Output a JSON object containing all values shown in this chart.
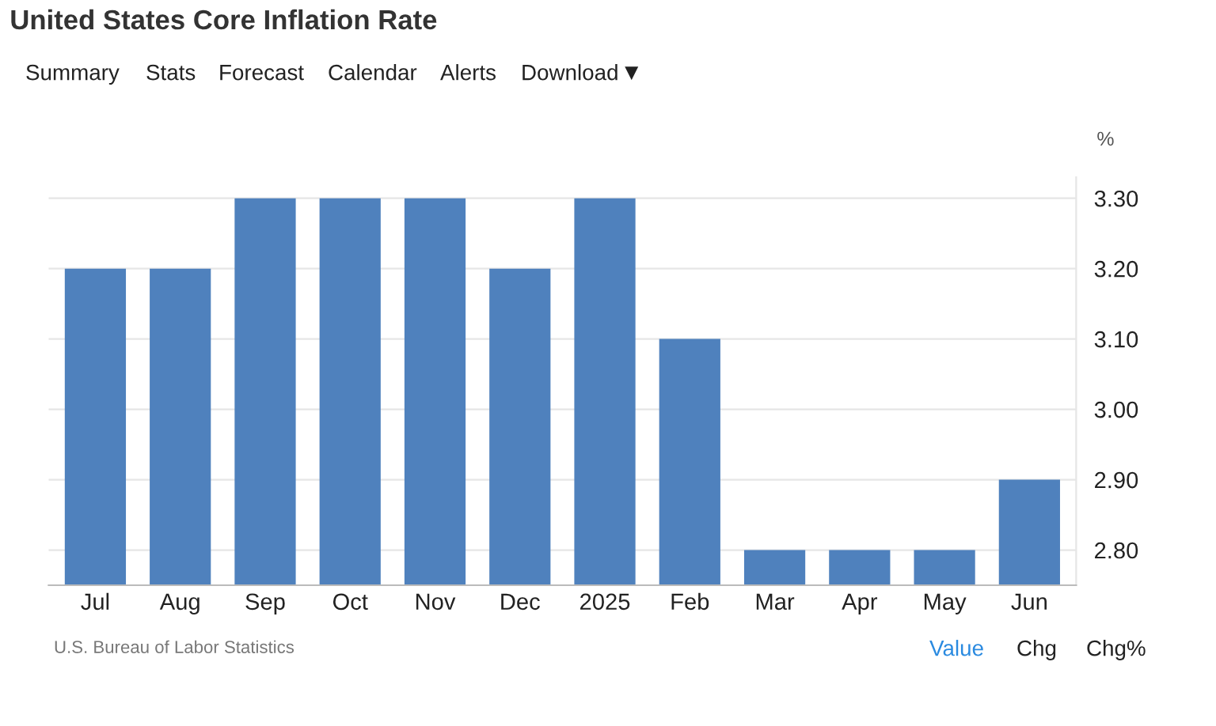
{
  "chart_data": {
    "type": "bar",
    "title": "United States Core Inflation Rate",
    "ylabel": "%",
    "categories": [
      "Jul",
      "Aug",
      "Sep",
      "Oct",
      "Nov",
      "Dec",
      "2025",
      "Feb",
      "Mar",
      "Apr",
      "May",
      "Jun"
    ],
    "values": [
      3.2,
      3.2,
      3.3,
      3.3,
      3.3,
      3.2,
      3.3,
      3.1,
      2.8,
      2.8,
      2.8,
      2.9
    ],
    "color": "#4f81bd",
    "ylim": [
      2.75,
      3.33
    ],
    "yticks": [
      {
        "value": 2.8,
        "label": "2.80"
      },
      {
        "value": 2.9,
        "label": "2.90"
      },
      {
        "value": 3.0,
        "label": "3.00"
      },
      {
        "value": 3.1,
        "label": "3.10"
      },
      {
        "value": 3.2,
        "label": "3.20"
      },
      {
        "value": 3.3,
        "label": "3.30"
      }
    ],
    "grid": "y",
    "annotations": [
      "Summary",
      "Stats",
      "Forecast",
      "Calendar",
      "Alerts",
      "Download",
      "U.S. Bureau of Labor Statistics",
      "Value",
      "Chg",
      "Chg%"
    ]
  }
}
